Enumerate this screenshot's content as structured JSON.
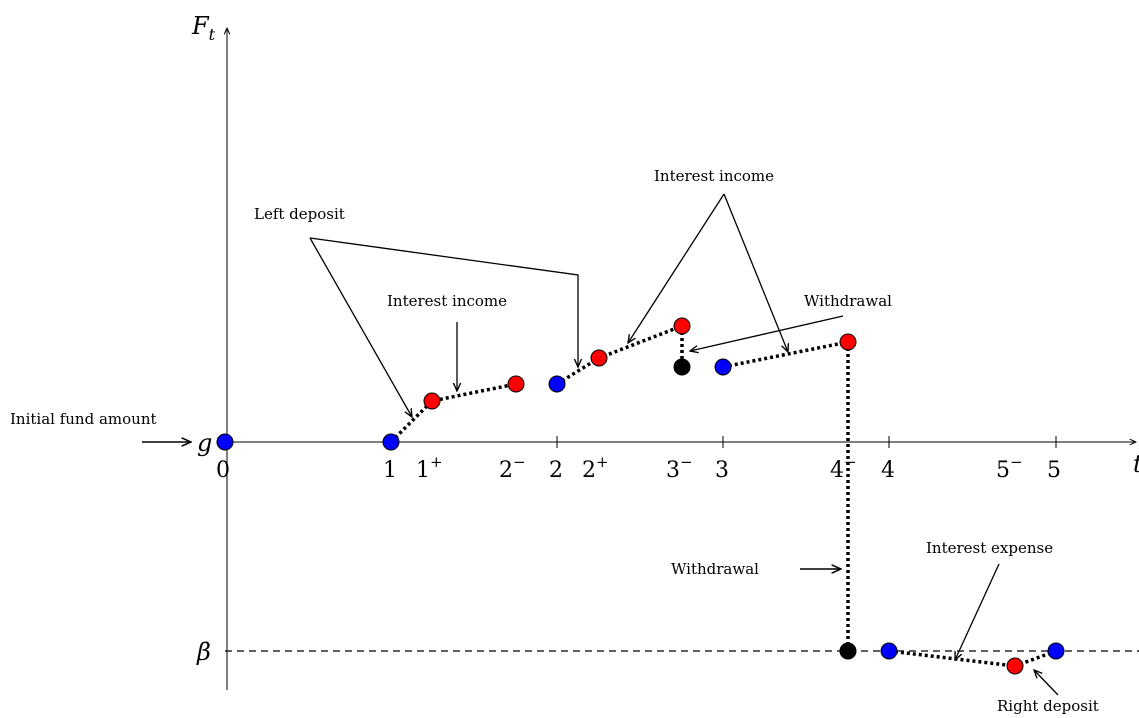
{
  "axes": {
    "y_label": "F",
    "y_label_sub": "t",
    "x_label": "t",
    "g_label": "g",
    "beta_label": "β"
  },
  "ticks": [
    {
      "base": "0",
      "sup": ""
    },
    {
      "base": "1",
      "sup": ""
    },
    {
      "base": "1",
      "sup": "+"
    },
    {
      "base": "2",
      "sup": "−"
    },
    {
      "base": "2",
      "sup": ""
    },
    {
      "base": "2",
      "sup": "+"
    },
    {
      "base": "3",
      "sup": "−"
    },
    {
      "base": "3",
      "sup": ""
    },
    {
      "base": "4",
      "sup": "−"
    },
    {
      "base": "4",
      "sup": ""
    },
    {
      "base": "5",
      "sup": "−"
    },
    {
      "base": "5",
      "sup": ""
    }
  ],
  "annotations": {
    "initial_fund": "Initial fund amount",
    "left_deposit": "Left deposit",
    "interest_income_1": "Interest income",
    "interest_income_2": "Interest income",
    "withdrawal_1": "Withdrawal",
    "withdrawal_2": "Withdrawal",
    "interest_expense": "Interest expense",
    "right_deposit": "Right deposit"
  },
  "colors": {
    "blue": "#0000ff",
    "red": "#ff0000",
    "black": "#000000"
  }
}
